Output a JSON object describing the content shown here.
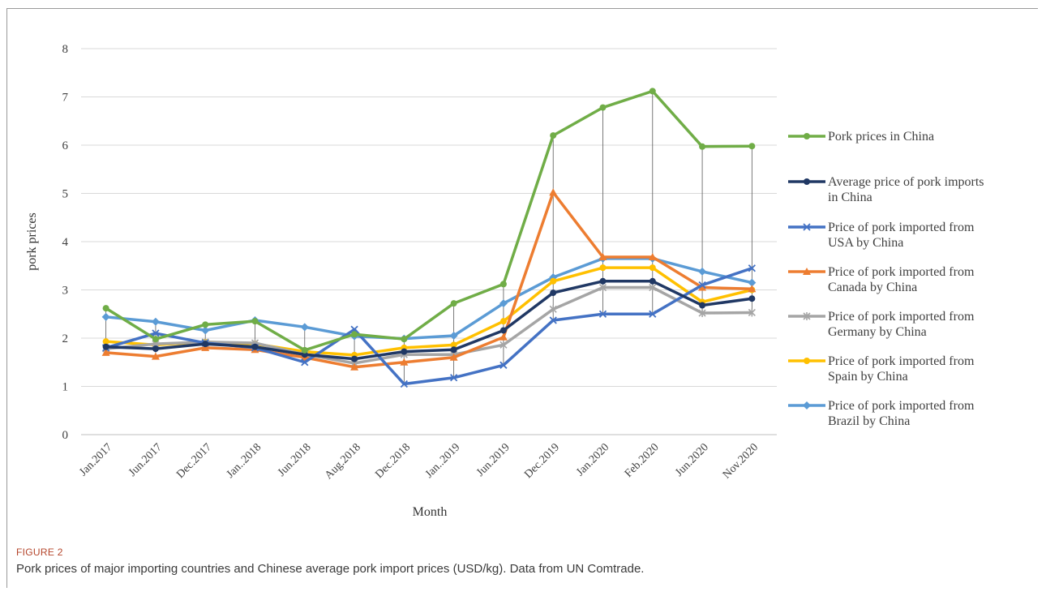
{
  "figure": {
    "label": "FIGURE 2",
    "caption": "Pork prices of major importing countries and Chinese average pork import prices (USD/kg). Data from UN Comtrade."
  },
  "chart_data": {
    "type": "line",
    "xlabel": "Month",
    "ylabel": "pork prices",
    "ylim": [
      0,
      8
    ],
    "yticks": [
      0,
      1,
      2,
      3,
      4,
      5,
      6,
      7,
      8
    ],
    "grid": "horizontal",
    "legend_position": "right",
    "categories": [
      "Jan.2017",
      "Jun.2017",
      "Dec.2017",
      "Jan..2018",
      "Jun.2018",
      "Aug.2018",
      "Dec.2018",
      "Jan..2019",
      "Jun.2019",
      "Dec.2019",
      "Jan.2020",
      "Feb.2020",
      "Jun.2020",
      "Nov.2020"
    ],
    "series": [
      {
        "name": "Pork prices in China",
        "color": "#70ad47",
        "marker": "circle",
        "values": [
          2.62,
          1.98,
          2.28,
          2.35,
          1.75,
          2.08,
          1.98,
          2.72,
          3.12,
          6.2,
          6.78,
          7.12,
          5.97,
          5.98
        ]
      },
      {
        "name": "Average price of pork imports in China",
        "color": "#203864",
        "marker": "circle",
        "values": [
          1.82,
          1.78,
          1.88,
          1.82,
          1.66,
          1.57,
          1.72,
          1.76,
          2.16,
          2.94,
          3.18,
          3.18,
          2.68,
          2.82
        ]
      },
      {
        "name": "Price of pork imported from USA by China",
        "color": "#4472c4",
        "marker": "x",
        "values": [
          1.8,
          2.1,
          1.9,
          1.8,
          1.5,
          2.18,
          1.05,
          1.18,
          1.44,
          2.37,
          2.5,
          2.5,
          3.1,
          3.45
        ]
      },
      {
        "name": "Price of pork imported from Canada by China",
        "color": "#ed7d31",
        "marker": "triangle",
        "values": [
          1.7,
          1.62,
          1.8,
          1.76,
          1.6,
          1.4,
          1.5,
          1.6,
          2.02,
          5.02,
          3.68,
          3.68,
          3.05,
          3.02
        ]
      },
      {
        "name": "Price of pork imported from Germany by China",
        "color": "#a5a5a5",
        "marker": "asterisk",
        "values": [
          1.78,
          1.88,
          1.92,
          1.9,
          1.66,
          1.48,
          1.66,
          1.66,
          1.86,
          2.6,
          3.05,
          3.05,
          2.52,
          2.53
        ]
      },
      {
        "name": "Price of pork imported from Spain by China",
        "color": "#ffc000",
        "marker": "circle",
        "values": [
          1.93,
          1.86,
          1.92,
          1.88,
          1.72,
          1.65,
          1.8,
          1.86,
          2.35,
          3.18,
          3.46,
          3.46,
          2.75,
          3.0
        ]
      },
      {
        "name": "Price of pork imported from Brazil by China",
        "color": "#5b9bd5",
        "marker": "diamond",
        "values": [
          2.44,
          2.34,
          2.16,
          2.37,
          2.23,
          2.04,
          1.99,
          2.05,
          2.72,
          3.26,
          3.65,
          3.65,
          3.38,
          3.15
        ]
      }
    ],
    "legend": [
      [
        "Pork prices in China"
      ],
      [
        "Average price of pork imports",
        "in China"
      ],
      [
        "Price of pork imported from",
        "USA by China"
      ],
      [
        "Price of pork imported from",
        "Canada by China"
      ],
      [
        "Price of pork imported from",
        "Germany by China"
      ],
      [
        "Price of pork imported from",
        "Spain by China"
      ],
      [
        "Price of pork imported from",
        "Brazil by China"
      ]
    ]
  }
}
